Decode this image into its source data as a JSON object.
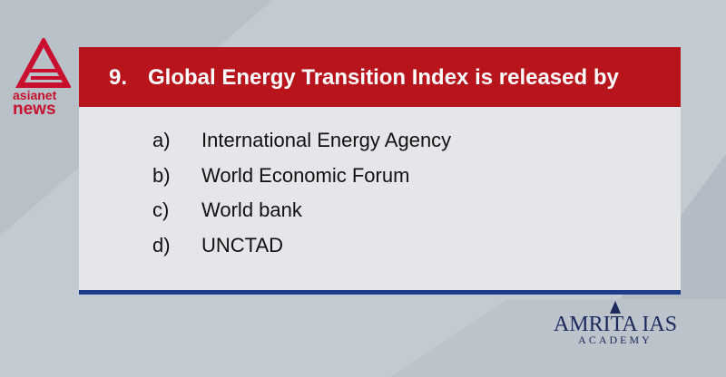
{
  "logo": {
    "line1": "asianet",
    "line2": "news"
  },
  "question": {
    "number": "9.",
    "text": "Global Energy Transition Index is released by"
  },
  "options": [
    {
      "letter": "a)",
      "text": "International Energy Agency"
    },
    {
      "letter": "b)",
      "text": "World Economic Forum"
    },
    {
      "letter": "c)",
      "text": "World bank"
    },
    {
      "letter": "d)",
      "text": "UNCTAD"
    }
  ],
  "brand": {
    "name": "AMRITA IAS",
    "sub": "ACADEMY"
  }
}
